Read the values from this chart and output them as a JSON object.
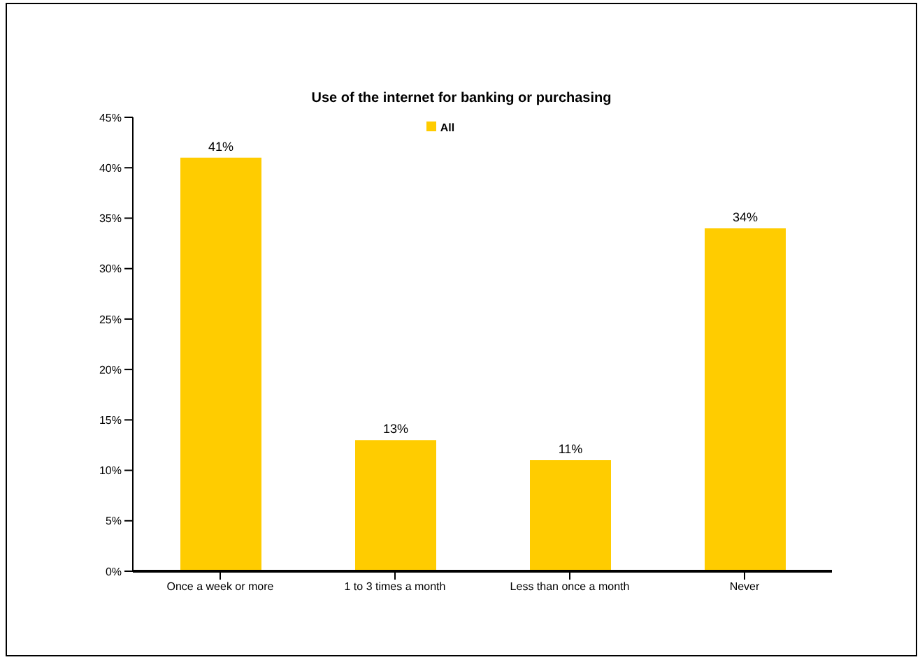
{
  "chart_data": {
    "type": "bar",
    "title": "Use of the internet for banking or purchasing",
    "categories": [
      "Once a week or more",
      "1 to 3 times a month",
      "Less than once a month",
      "Never"
    ],
    "series": [
      {
        "name": "All",
        "color": "#ffcc00",
        "values": [
          41,
          13,
          11,
          34
        ]
      }
    ],
    "ylim": [
      0,
      45
    ],
    "yticks": [
      {
        "value": 0,
        "label": "0%"
      },
      {
        "value": 5,
        "label": "5%"
      },
      {
        "value": 10,
        "label": "10%"
      },
      {
        "value": 15,
        "label": "15%"
      },
      {
        "value": 20,
        "label": "20%"
      },
      {
        "value": 25,
        "label": "25%"
      },
      {
        "value": 30,
        "label": "30%"
      },
      {
        "value": 35,
        "label": "35%"
      },
      {
        "value": 40,
        "label": "40%"
      },
      {
        "value": 45,
        "label": "45%"
      }
    ],
    "value_labels": [
      "41%",
      "13%",
      "11%",
      "34%"
    ],
    "legend": "top",
    "grid": false
  }
}
